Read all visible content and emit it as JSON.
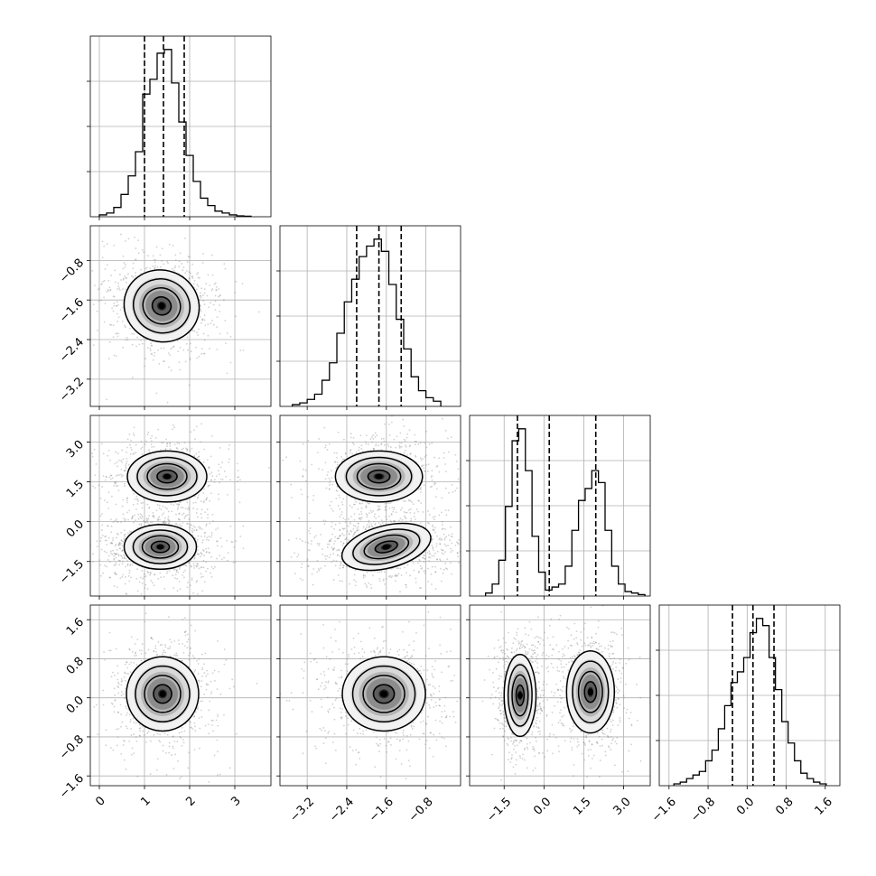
{
  "chart_data": {
    "type": "corner",
    "title": "",
    "grid": true,
    "parameters": [
      {
        "label": "",
        "range": [
          -0.2,
          3.8
        ],
        "ticks": [
          "0",
          "1",
          "2",
          "3"
        ],
        "tick_values": [
          0,
          1,
          2,
          3
        ],
        "quantiles": [
          1.0,
          1.42,
          1.88
        ],
        "histogram": {
          "bin_edges": [
            0.0,
            0.16,
            0.32,
            0.48,
            0.64,
            0.8,
            0.96,
            1.12,
            1.28,
            1.44,
            1.6,
            1.76,
            1.92,
            2.08,
            2.24,
            2.4,
            2.56,
            2.72,
            2.88,
            3.04,
            3.2,
            3.36
          ],
          "counts": [
            1,
            2,
            5,
            12,
            22,
            35,
            66,
            74,
            88,
            90,
            72,
            51,
            33,
            19,
            10,
            6,
            3,
            2,
            1,
            0.5,
            0.3
          ]
        }
      },
      {
        "label": "",
        "range": [
          -3.75,
          -0.1
        ],
        "ticks": [
          "−3.2",
          "−2.4",
          "−1.6",
          "−0.8"
        ],
        "tick_values": [
          -3.2,
          -2.4,
          -1.6,
          -0.8
        ],
        "quantiles": [
          -2.2,
          -1.75,
          -1.3
        ],
        "histogram": {
          "bin_edges": [
            -3.5,
            -3.35,
            -3.2,
            -3.05,
            -2.9,
            -2.75,
            -2.6,
            -2.45,
            -2.3,
            -2.15,
            -2.0,
            -1.85,
            -1.7,
            -1.55,
            -1.4,
            -1.25,
            -1.1,
            -0.95,
            -0.8,
            -0.65,
            -0.5
          ],
          "counts": [
            1,
            2,
            4,
            7,
            15,
            25,
            42,
            60,
            73,
            86,
            92,
            96,
            89,
            70,
            50,
            33,
            17,
            9,
            5,
            3
          ]
        }
      },
      {
        "label": "",
        "range": [
          -2.8,
          4.0
        ],
        "ticks": [
          "−1.5",
          "0.0",
          "1.5",
          "3.0"
        ],
        "tick_values": [
          -1.5,
          0.0,
          1.5,
          3.0
        ],
        "quantiles": [
          -1.0,
          0.2,
          1.95
        ],
        "histogram": {
          "bin_edges": [
            -2.2,
            -1.95,
            -1.7,
            -1.45,
            -1.2,
            -0.95,
            -0.7,
            -0.45,
            -0.2,
            0.05,
            0.3,
            0.55,
            0.8,
            1.05,
            1.3,
            1.55,
            1.8,
            2.05,
            2.3,
            2.55,
            2.8,
            3.05,
            3.3,
            3.55,
            3.8
          ],
          "counts": [
            1,
            4,
            12,
            30,
            52,
            56,
            42,
            20,
            8,
            2,
            3,
            4,
            10,
            22,
            32,
            36,
            42,
            38,
            22,
            10,
            4,
            1.5,
            1,
            0.5
          ]
        }
      },
      {
        "label": "",
        "range": [
          -1.8,
          1.9
        ],
        "ticks": [
          "−1.6",
          "−0.8",
          "0.0",
          "0.8",
          "1.6"
        ],
        "tick_values": [
          -1.6,
          -0.8,
          0.0,
          0.8,
          1.6
        ],
        "quantiles": [
          -0.3,
          0.12,
          0.55
        ],
        "histogram": {
          "bin_edges": [
            -1.5,
            -1.37,
            -1.24,
            -1.11,
            -0.98,
            -0.85,
            -0.72,
            -0.59,
            -0.46,
            -0.33,
            -0.2,
            -0.07,
            0.06,
            0.19,
            0.32,
            0.45,
            0.58,
            0.71,
            0.84,
            0.97,
            1.1,
            1.23,
            1.36,
            1.49,
            1.62
          ],
          "counts": [
            1,
            2,
            4,
            6,
            8,
            14,
            20,
            32,
            45,
            58,
            64,
            72,
            86,
            94,
            90,
            72,
            54,
            36,
            24,
            14,
            7,
            4,
            2,
            1
          ]
        }
      }
    ],
    "blobs": {
      "1-0": [
        {
          "cx": 1.38,
          "cy": -1.72,
          "sx": 0.42,
          "sy": 0.36,
          "rot": -0.42,
          "w": 1
        }
      ],
      "2-0": [
        {
          "cx": 1.5,
          "cy": 1.7,
          "sx": 0.44,
          "sy": 0.48,
          "rot": 0,
          "w": 1
        },
        {
          "cx": 1.35,
          "cy": -0.95,
          "sx": 0.4,
          "sy": 0.42,
          "rot": 0,
          "w": 1.3
        }
      ],
      "2-1": [
        {
          "cx": -1.75,
          "cy": 1.7,
          "sx": 0.44,
          "sy": 0.48,
          "rot": 0,
          "w": 1
        },
        {
          "cx": -1.6,
          "cy": -0.95,
          "sx": 0.46,
          "sy": 0.4,
          "rot": 0.25,
          "w": 1.3
        }
      ],
      "3-0": [
        {
          "cx": 1.4,
          "cy": 0.08,
          "sx": 0.4,
          "sy": 0.38,
          "rot": 0,
          "w": 1
        }
      ],
      "3-1": [
        {
          "cx": -1.65,
          "cy": 0.08,
          "sx": 0.42,
          "sy": 0.38,
          "rot": 0,
          "w": 1
        }
      ],
      "3-2": [
        {
          "cx": -0.9,
          "cy": 0.05,
          "sx": 0.3,
          "sy": 0.42,
          "rot": 0,
          "w": 1
        },
        {
          "cx": 1.75,
          "cy": 0.12,
          "sx": 0.45,
          "sy": 0.42,
          "rot": 0,
          "w": 1
        }
      ]
    },
    "contour_levels": [
      0.5,
      1.0,
      1.5,
      2.0
    ]
  }
}
